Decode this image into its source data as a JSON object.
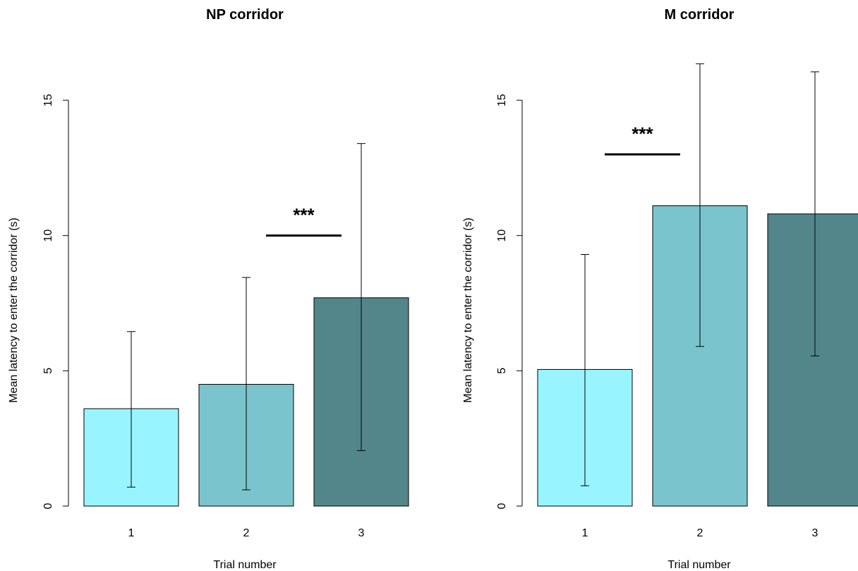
{
  "chart_data": [
    {
      "type": "bar",
      "title": "NP corridor",
      "xlabel": "Trial number",
      "ylabel": "Mean latency to enter the corridor (s)",
      "categories": [
        "1",
        "2",
        "3"
      ],
      "values": [
        3.6,
        4.5,
        7.7
      ],
      "error_low": [
        0.7,
        0.6,
        2.05
      ],
      "error_high": [
        6.45,
        8.45,
        13.4
      ],
      "colors": [
        "#98F5FF",
        "#7AC5CD",
        "#53868B"
      ],
      "ylim": [
        0,
        15
      ],
      "yticks": [
        0,
        5,
        10,
        15
      ],
      "significance": {
        "label": "***",
        "between": [
          "2",
          "3"
        ],
        "y": 10
      }
    },
    {
      "type": "bar",
      "title": "M corridor",
      "xlabel": "Trial number",
      "ylabel": "Mean latency to enter the corridor (s)",
      "categories": [
        "1",
        "2",
        "3"
      ],
      "values": [
        5.05,
        11.1,
        10.8
      ],
      "error_low": [
        0.75,
        5.9,
        5.55
      ],
      "error_high": [
        9.3,
        16.35,
        16.05
      ],
      "colors": [
        "#98F5FF",
        "#7AC5CD",
        "#53868B"
      ],
      "ylim": [
        0,
        15
      ],
      "yticks": [
        0,
        5,
        10,
        15
      ],
      "significance": {
        "label": "***",
        "between": [
          "1",
          "2"
        ],
        "y": 13
      }
    }
  ]
}
